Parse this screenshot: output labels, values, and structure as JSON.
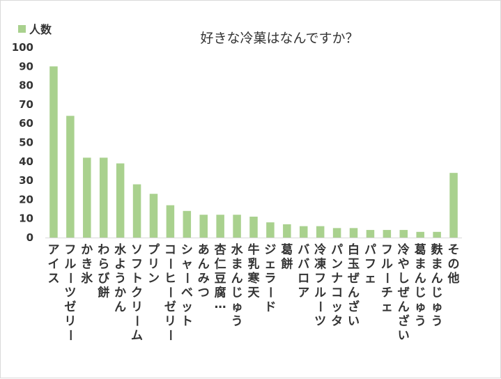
{
  "chart_data": {
    "type": "bar",
    "title": "好きな冷菓はなんですか？",
    "legend": {
      "position": "top-left",
      "entries": [
        "人数"
      ]
    },
    "colors": {
      "bar": "#a9d18e"
    },
    "ylim": [
      0,
      100
    ],
    "yticks": [
      0,
      10,
      20,
      30,
      40,
      50,
      60,
      70,
      80,
      90,
      100
    ],
    "grid": false,
    "categories": [
      "アイス",
      "フルーツゼリー",
      "かき氷",
      "わらび餅",
      "水ようかん",
      "ソフトクリーム",
      "プリン",
      "コーヒーゼリー",
      "シャーベット",
      "あんみつ",
      "杏仁豆腐…",
      "水まんじゅう",
      "牛乳寒天",
      "ジェラード",
      "葛餅",
      "ババロア",
      "冷凍フルーツ",
      "パンナコッタ",
      "白玉ぜんざい",
      "パフェ",
      "フルーチェ",
      "冷やしぜんざい",
      "葛まんじゅう",
      "麩まんじゅう",
      "その他"
    ],
    "series": [
      {
        "name": "人数",
        "values": [
          90,
          64,
          42,
          42,
          39,
          28,
          23,
          17,
          14,
          12,
          12,
          12,
          11,
          8,
          7,
          6,
          6,
          5,
          5,
          4,
          4,
          4,
          3,
          3,
          34
        ]
      }
    ]
  }
}
